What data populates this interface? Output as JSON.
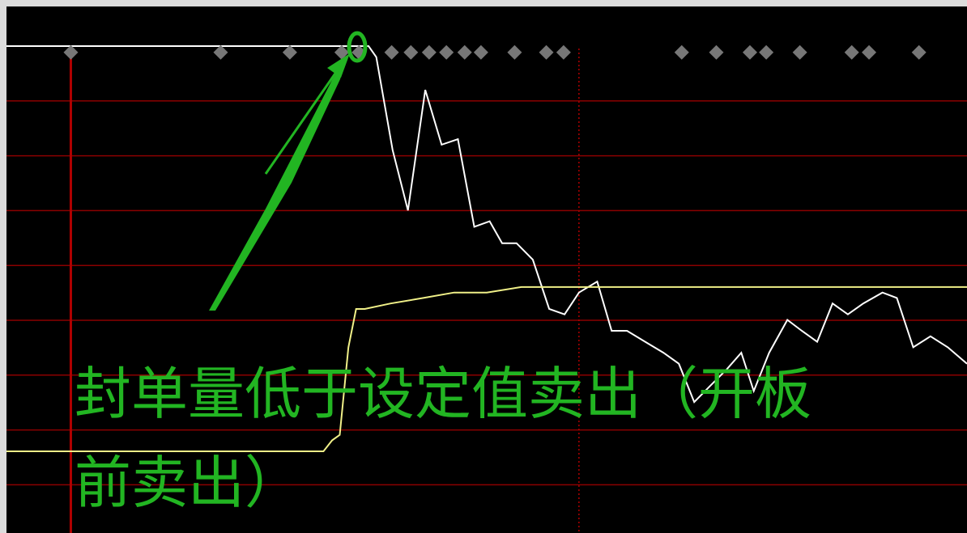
{
  "chart_data": {
    "type": "line",
    "title": "",
    "xlabel": "",
    "ylabel": "",
    "grid": true,
    "ylim": [
      0,
      10
    ],
    "xlim": [
      0,
      100
    ],
    "series": [
      {
        "name": "",
        "color": "#ffffff",
        "points": [
          [
            0,
            9.1
          ],
          [
            36,
            9.1
          ],
          [
            37.7,
            9.1
          ],
          [
            38.5,
            8.9
          ],
          [
            40.2,
            7.2
          ],
          [
            41.8,
            6.1
          ],
          [
            43.6,
            8.3
          ],
          [
            45.3,
            7.3
          ],
          [
            47,
            7.4
          ],
          [
            48.7,
            5.8
          ],
          [
            50.3,
            5.9
          ],
          [
            51.6,
            5.5
          ],
          [
            53.1,
            5.5
          ],
          [
            54.8,
            5.2
          ],
          [
            56.5,
            4.3
          ],
          [
            58.1,
            4.2
          ],
          [
            59.6,
            4.6
          ],
          [
            61.5,
            4.8
          ],
          [
            63,
            3.9
          ],
          [
            64.6,
            3.9
          ],
          [
            66.5,
            3.7
          ],
          [
            68.4,
            3.5
          ],
          [
            70,
            3.3
          ],
          [
            71.6,
            2.6
          ],
          [
            73.3,
            2.9
          ],
          [
            75,
            3.2
          ],
          [
            76.5,
            3.5
          ],
          [
            77.8,
            2.8
          ],
          [
            79.4,
            3.5
          ],
          [
            81.3,
            4.1
          ],
          [
            82.8,
            3.9
          ],
          [
            84.4,
            3.7
          ],
          [
            86,
            4.4
          ],
          [
            87.6,
            4.2
          ],
          [
            89.2,
            4.4
          ],
          [
            91.2,
            4.6
          ],
          [
            92.7,
            4.5
          ],
          [
            94.4,
            3.6
          ],
          [
            96.2,
            3.8
          ],
          [
            98,
            3.6
          ],
          [
            100,
            3.3
          ]
        ]
      },
      {
        "name": "",
        "color": "#f0f088",
        "points": [
          [
            0,
            1.7
          ],
          [
            33,
            1.7
          ],
          [
            33.9,
            1.9
          ],
          [
            34.7,
            2.0
          ],
          [
            35.6,
            3.6
          ],
          [
            36.4,
            4.3
          ],
          [
            37.3,
            4.3
          ],
          [
            40,
            4.4
          ],
          [
            43.4,
            4.5
          ],
          [
            46.6,
            4.6
          ],
          [
            50,
            4.6
          ],
          [
            53.6,
            4.7
          ],
          [
            100,
            4.7
          ]
        ]
      }
    ],
    "markers": {
      "type": "diamond",
      "color": "#777777",
      "y": 9.0,
      "x": [
        6.7,
        22.3,
        29.5,
        34.9,
        36.7,
        40.1,
        42.1,
        44.0,
        45.8,
        47.7,
        49.4,
        52.9,
        56.2,
        58.0,
        70.3,
        73.9,
        77.4,
        79.1,
        82.6,
        88.0,
        89.8,
        95.0
      ]
    },
    "hline_color": "#8b0000",
    "vline_solid_x": 6.7,
    "vline_dotted_x": 59.6,
    "accent_color": "#22b522"
  },
  "annotation": {
    "line1": "封单量低于设定值卖出（开板",
    "line2": "前卖出）"
  }
}
